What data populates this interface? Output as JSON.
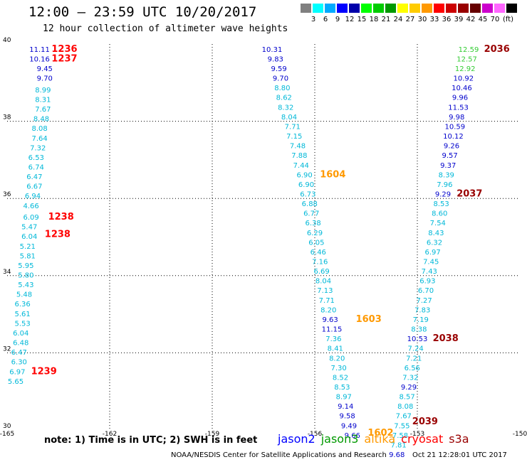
{
  "chart_data": {
    "type": "scatter",
    "title": "12:00 – 23:59 UTC 10/20/2017",
    "subtitle": "12 hour collection of altimeter wave heights",
    "xlim": [
      -165,
      -150
    ],
    "ylim": [
      30,
      40
    ],
    "x_ticks": [
      {
        "v": -165,
        "label": "-165"
      },
      {
        "v": -162,
        "label": "-162"
      },
      {
        "v": -159,
        "label": "-159"
      },
      {
        "v": -156,
        "label": "-156"
      },
      {
        "v": -153,
        "label": "-153"
      },
      {
        "v": -150,
        "label": "-150"
      }
    ],
    "y_ticks": [
      {
        "v": 30,
        "label": "30"
      },
      {
        "v": 32,
        "label": "32"
      },
      {
        "v": 34,
        "label": "34"
      },
      {
        "v": 36,
        "label": "36"
      },
      {
        "v": 38,
        "label": "38"
      },
      {
        "v": 40,
        "label": "40"
      }
    ],
    "grid": true,
    "color_scale": {
      "unit": "(ft)",
      "colors": [
        "#808080",
        "#00ffff",
        "#00aaff",
        "#0000ff",
        "#0000aa",
        "#00ff00",
        "#00cc00",
        "#009900",
        "#ffff00",
        "#ffcc00",
        "#ff9900",
        "#ff0000",
        "#cc0000",
        "#990000",
        "#660000",
        "#cc00cc",
        "#ff66ff",
        "#000000"
      ],
      "labels": [
        "3",
        "6",
        "9",
        "12",
        "15",
        "18",
        "21",
        "24",
        "27",
        "30",
        "33",
        "36",
        "39",
        "42",
        "45",
        "70"
      ]
    },
    "series": [
      {
        "name": "cryosat",
        "color": "#ff0000",
        "points": [
          {
            "x": -164.05,
            "y": 39.8,
            "v": "11.11"
          },
          {
            "x": -164.05,
            "y": 39.55,
            "v": "10.16"
          },
          {
            "x": -163.9,
            "y": 39.3,
            "v": "9.45"
          },
          {
            "x": -163.9,
            "y": 39.05,
            "v": "9.70"
          },
          {
            "x": -163.95,
            "y": 38.75,
            "v": "8.99"
          },
          {
            "x": -163.95,
            "y": 38.5,
            "v": "8.31"
          },
          {
            "x": -163.95,
            "y": 38.25,
            "v": "7.67"
          },
          {
            "x": -164.0,
            "y": 38.0,
            "v": "8.48"
          },
          {
            "x": -164.05,
            "y": 37.75,
            "v": "8.08"
          },
          {
            "x": -164.05,
            "y": 37.5,
            "v": "7.64"
          },
          {
            "x": -164.1,
            "y": 37.25,
            "v": "7.32"
          },
          {
            "x": -164.15,
            "y": 37.0,
            "v": "6.53"
          },
          {
            "x": -164.15,
            "y": 36.75,
            "v": "6.74"
          },
          {
            "x": -164.2,
            "y": 36.5,
            "v": "6.47"
          },
          {
            "x": -164.2,
            "y": 36.25,
            "v": "6.67"
          },
          {
            "x": -164.25,
            "y": 36.0,
            "v": "6.94"
          },
          {
            "x": -164.3,
            "y": 35.75,
            "v": "4.66"
          },
          {
            "x": -164.3,
            "y": 35.45,
            "v": "6.09"
          },
          {
            "x": -164.35,
            "y": 35.2,
            "v": "5.47"
          },
          {
            "x": -164.35,
            "y": 34.95,
            "v": "6.04"
          },
          {
            "x": -164.4,
            "y": 34.7,
            "v": "5.21"
          },
          {
            "x": -164.4,
            "y": 34.45,
            "v": "5.81"
          },
          {
            "x": -164.45,
            "y": 34.2,
            "v": "5.95"
          },
          {
            "x": -164.45,
            "y": 33.95,
            "v": "5.80"
          },
          {
            "x": -164.45,
            "y": 33.7,
            "v": "5.43"
          },
          {
            "x": -164.5,
            "y": 33.45,
            "v": "5.48"
          },
          {
            "x": -164.55,
            "y": 33.2,
            "v": "6.36"
          },
          {
            "x": -164.55,
            "y": 32.95,
            "v": "5.61"
          },
          {
            "x": -164.55,
            "y": 32.7,
            "v": "5.53"
          },
          {
            "x": -164.6,
            "y": 32.45,
            "v": "6.04"
          },
          {
            "x": -164.6,
            "y": 32.2,
            "v": "6.48"
          },
          {
            "x": -164.65,
            "y": 31.95,
            "v": "6.47"
          },
          {
            "x": -164.65,
            "y": 31.7,
            "v": "6.30"
          },
          {
            "x": -164.7,
            "y": 31.45,
            "v": "6.97"
          },
          {
            "x": -164.75,
            "y": 31.2,
            "v": "5.65"
          }
        ]
      },
      {
        "name": "altika",
        "color": "#ff9900",
        "points": [
          {
            "x": -157.25,
            "y": 39.8,
            "v": "10.31"
          },
          {
            "x": -157.15,
            "y": 39.55,
            "v": "9.83"
          },
          {
            "x": -157.05,
            "y": 39.3,
            "v": "9.59"
          },
          {
            "x": -157.0,
            "y": 39.05,
            "v": "9.70"
          },
          {
            "x": -156.95,
            "y": 38.8,
            "v": "8.80"
          },
          {
            "x": -156.9,
            "y": 38.55,
            "v": "8.62"
          },
          {
            "x": -156.85,
            "y": 38.3,
            "v": "8.32"
          },
          {
            "x": -156.75,
            "y": 38.05,
            "v": "8.04"
          },
          {
            "x": -156.65,
            "y": 37.8,
            "v": "7.71"
          },
          {
            "x": -156.6,
            "y": 37.55,
            "v": "7.15"
          },
          {
            "x": -156.5,
            "y": 37.3,
            "v": "7.48"
          },
          {
            "x": -156.45,
            "y": 37.05,
            "v": "7.88"
          },
          {
            "x": -156.4,
            "y": 36.8,
            "v": "7.44"
          },
          {
            "x": -156.3,
            "y": 36.55,
            "v": "6.90"
          },
          {
            "x": -156.25,
            "y": 36.3,
            "v": "6.90"
          },
          {
            "x": -156.2,
            "y": 36.05,
            "v": "6.73"
          },
          {
            "x": -156.15,
            "y": 35.8,
            "v": "6.88"
          },
          {
            "x": -156.1,
            "y": 35.55,
            "v": "6.77"
          },
          {
            "x": -156.05,
            "y": 35.3,
            "v": "6.38"
          },
          {
            "x": -156.0,
            "y": 35.05,
            "v": "6.29"
          },
          {
            "x": -155.95,
            "y": 34.8,
            "v": "6.05"
          },
          {
            "x": -155.9,
            "y": 34.55,
            "v": "6.46"
          },
          {
            "x": -155.85,
            "y": 34.3,
            "v": "7.16"
          },
          {
            "x": -155.8,
            "y": 34.05,
            "v": "6.69"
          },
          {
            "x": -155.75,
            "y": 33.8,
            "v": "8.04"
          },
          {
            "x": -155.7,
            "y": 33.55,
            "v": "7.13"
          },
          {
            "x": -155.65,
            "y": 33.3,
            "v": "7.71"
          },
          {
            "x": -155.6,
            "y": 33.05,
            "v": "8.20"
          },
          {
            "x": -155.55,
            "y": 32.8,
            "v": "9.63"
          },
          {
            "x": -155.5,
            "y": 32.55,
            "v": "11.15"
          },
          {
            "x": -155.45,
            "y": 32.3,
            "v": "7.36"
          },
          {
            "x": -155.4,
            "y": 32.05,
            "v": "8.41"
          },
          {
            "x": -155.35,
            "y": 31.8,
            "v": "8.20"
          },
          {
            "x": -155.3,
            "y": 31.55,
            "v": "7.30"
          },
          {
            "x": -155.25,
            "y": 31.3,
            "v": "8.52"
          },
          {
            "x": -155.2,
            "y": 31.05,
            "v": "8.53"
          },
          {
            "x": -155.15,
            "y": 30.8,
            "v": "8.97"
          },
          {
            "x": -155.1,
            "y": 30.55,
            "v": "9.14"
          },
          {
            "x": -155.05,
            "y": 30.3,
            "v": "9.58"
          },
          {
            "x": -155.0,
            "y": 30.05,
            "v": "9.49"
          },
          {
            "x": -154.9,
            "y": 29.8,
            "v": "9.66"
          }
        ]
      },
      {
        "name": "s3a",
        "color": "#990000",
        "points": [
          {
            "x": -151.5,
            "y": 39.8,
            "v": "12.59"
          },
          {
            "x": -151.55,
            "y": 39.55,
            "v": "12.57"
          },
          {
            "x": -151.6,
            "y": 39.3,
            "v": "12.92"
          },
          {
            "x": -151.65,
            "y": 39.05,
            "v": "10.92"
          },
          {
            "x": -151.7,
            "y": 38.8,
            "v": "10.46"
          },
          {
            "x": -151.75,
            "y": 38.55,
            "v": "9.96"
          },
          {
            "x": -151.8,
            "y": 38.3,
            "v": "11.53"
          },
          {
            "x": -151.85,
            "y": 38.05,
            "v": "9.98"
          },
          {
            "x": -151.9,
            "y": 37.8,
            "v": "10.59"
          },
          {
            "x": -151.95,
            "y": 37.55,
            "v": "10.12"
          },
          {
            "x": -152.0,
            "y": 37.3,
            "v": "9.26"
          },
          {
            "x": -152.05,
            "y": 37.05,
            "v": "9.57"
          },
          {
            "x": -152.1,
            "y": 36.8,
            "v": "9.37"
          },
          {
            "x": -152.15,
            "y": 36.55,
            "v": "8.39"
          },
          {
            "x": -152.2,
            "y": 36.3,
            "v": "7.96"
          },
          {
            "x": -152.25,
            "y": 36.05,
            "v": "9.29"
          },
          {
            "x": -152.3,
            "y": 35.8,
            "v": "8.53"
          },
          {
            "x": -152.35,
            "y": 35.55,
            "v": "8.60"
          },
          {
            "x": -152.4,
            "y": 35.3,
            "v": "7.54"
          },
          {
            "x": -152.45,
            "y": 35.05,
            "v": "8.43"
          },
          {
            "x": -152.5,
            "y": 34.8,
            "v": "6.32"
          },
          {
            "x": -152.55,
            "y": 34.55,
            "v": "6.97"
          },
          {
            "x": -152.6,
            "y": 34.3,
            "v": "7.45"
          },
          {
            "x": -152.65,
            "y": 34.05,
            "v": "7.43"
          },
          {
            "x": -152.7,
            "y": 33.8,
            "v": "6.93"
          },
          {
            "x": -152.75,
            "y": 33.55,
            "v": "6.70"
          },
          {
            "x": -152.8,
            "y": 33.3,
            "v": "7.27"
          },
          {
            "x": -152.85,
            "y": 33.05,
            "v": "7.83"
          },
          {
            "x": -152.9,
            "y": 32.8,
            "v": "7.19"
          },
          {
            "x": -152.95,
            "y": 32.55,
            "v": "8.38"
          },
          {
            "x": -153.0,
            "y": 32.3,
            "v": "10.53"
          },
          {
            "x": -153.05,
            "y": 32.05,
            "v": "7.24"
          },
          {
            "x": -153.1,
            "y": 31.8,
            "v": "7.21"
          },
          {
            "x": -153.15,
            "y": 31.55,
            "v": "6.56"
          },
          {
            "x": -153.2,
            "y": 31.3,
            "v": "7.32"
          },
          {
            "x": -153.25,
            "y": 31.05,
            "v": "9.29"
          },
          {
            "x": -153.3,
            "y": 30.8,
            "v": "8.57"
          },
          {
            "x": -153.35,
            "y": 30.55,
            "v": "8.08"
          },
          {
            "x": -153.4,
            "y": 30.3,
            "v": "7.67"
          },
          {
            "x": -153.45,
            "y": 30.05,
            "v": "7.55"
          },
          {
            "x": -153.5,
            "y": 29.8,
            "v": "7.58"
          },
          {
            "x": -153.55,
            "y": 29.55,
            "v": "7.81"
          },
          {
            "x": -153.6,
            "y": 29.3,
            "v": "9.68"
          }
        ]
      }
    ],
    "time_labels": [
      {
        "x": -163.7,
        "y": 39.8,
        "t": "1236",
        "series": "cryosat"
      },
      {
        "x": -163.7,
        "y": 39.55,
        "t": "1237",
        "series": "cryosat"
      },
      {
        "x": -163.8,
        "y": 35.45,
        "t": "1238",
        "series": "cryosat"
      },
      {
        "x": -163.9,
        "y": 35.0,
        "t": "1238",
        "series": "cryosat"
      },
      {
        "x": -164.3,
        "y": 31.45,
        "t": "1239",
        "series": "cryosat"
      },
      {
        "x": -155.85,
        "y": 36.55,
        "t": "1604",
        "series": "altika"
      },
      {
        "x": -154.8,
        "y": 32.8,
        "t": "1603",
        "series": "altika"
      },
      {
        "x": -154.45,
        "y": 29.85,
        "t": "1602",
        "series": "altika"
      },
      {
        "x": -151.05,
        "y": 39.8,
        "t": "2036",
        "series": "s3a"
      },
      {
        "x": -151.85,
        "y": 36.05,
        "t": "2037",
        "series": "s3a"
      },
      {
        "x": -152.55,
        "y": 32.3,
        "t": "2038",
        "series": "s3a"
      },
      {
        "x": -153.15,
        "y": 30.15,
        "t": "2039",
        "series": "s3a"
      }
    ]
  },
  "note": "note: 1) Time is in UTC; 2) SWH is in feet",
  "legend": [
    {
      "label": "jason2",
      "color": "#0000ff"
    },
    {
      "label": "jason3",
      "color": "#009900"
    },
    {
      "label": "altika",
      "color": "#ff9900"
    },
    {
      "label": "cryosat",
      "color": "#ff0000"
    },
    {
      "label": "s3a",
      "color": "#990000"
    }
  ],
  "credit": "NOAA/NESDIS Center for Satellite Applications and Research",
  "timestamp": "Oct 21 12:28:01 UTC 2017"
}
